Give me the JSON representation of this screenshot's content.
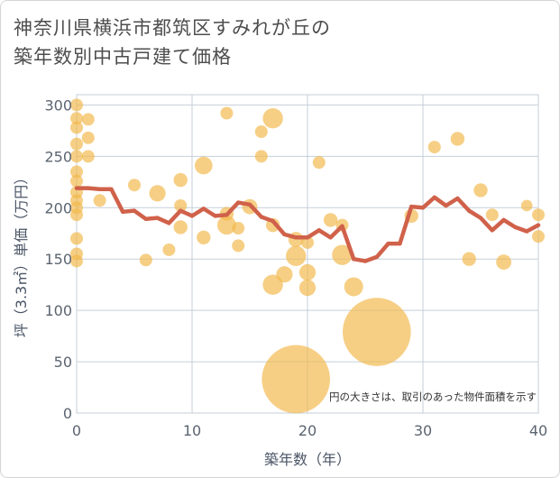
{
  "title_line1": "神奈川県横浜市都筑区すみれが丘の",
  "title_line2": "築年数別中古戸建て価格",
  "colors": {
    "bubble": "#f2b84b",
    "line": "#d0614a",
    "grid": "#c5cfd8"
  },
  "chart_data": {
    "type": "scatter",
    "xlabel": "築年数（年）",
    "ylabel": "坪（3.3㎡）単価（万円）",
    "xlim": [
      0,
      40
    ],
    "ylim": [
      0,
      310
    ],
    "x_ticks": [
      "0",
      "10",
      "20",
      "30",
      "40"
    ],
    "y_ticks": [
      "0",
      "50",
      "100",
      "150",
      "200",
      "250",
      "300"
    ],
    "annotation": "円の大きさは、取引のあった物件面積を示す",
    "bubbles": [
      {
        "x": 0,
        "y": 300,
        "s": 1
      },
      {
        "x": 0,
        "y": 287,
        "s": 1
      },
      {
        "x": 0,
        "y": 278,
        "s": 1
      },
      {
        "x": 0,
        "y": 262,
        "s": 1
      },
      {
        "x": 0,
        "y": 250,
        "s": 1
      },
      {
        "x": 0,
        "y": 235,
        "s": 1
      },
      {
        "x": 0,
        "y": 226,
        "s": 1
      },
      {
        "x": 0,
        "y": 215,
        "s": 1
      },
      {
        "x": 0,
        "y": 207,
        "s": 1
      },
      {
        "x": 0,
        "y": 200,
        "s": 1
      },
      {
        "x": 0,
        "y": 193,
        "s": 1
      },
      {
        "x": 0,
        "y": 170,
        "s": 1
      },
      {
        "x": 0,
        "y": 155,
        "s": 1
      },
      {
        "x": 0,
        "y": 148,
        "s": 1
      },
      {
        "x": 1,
        "y": 286,
        "s": 1
      },
      {
        "x": 1,
        "y": 268,
        "s": 1
      },
      {
        "x": 1,
        "y": 250,
        "s": 1
      },
      {
        "x": 2,
        "y": 207,
        "s": 1
      },
      {
        "x": 5,
        "y": 222,
        "s": 1
      },
      {
        "x": 6,
        "y": 149,
        "s": 1
      },
      {
        "x": 7,
        "y": 214,
        "s": 1.3
      },
      {
        "x": 8,
        "y": 159,
        "s": 1
      },
      {
        "x": 9,
        "y": 227,
        "s": 1.1
      },
      {
        "x": 9,
        "y": 202,
        "s": 1
      },
      {
        "x": 9,
        "y": 181,
        "s": 1.1
      },
      {
        "x": 11,
        "y": 241,
        "s": 1.4
      },
      {
        "x": 11,
        "y": 171,
        "s": 1.1
      },
      {
        "x": 13,
        "y": 292,
        "s": 1
      },
      {
        "x": 13,
        "y": 194,
        "s": 1.1
      },
      {
        "x": 13,
        "y": 183,
        "s": 1.5
      },
      {
        "x": 14,
        "y": 180,
        "s": 1
      },
      {
        "x": 14,
        "y": 163,
        "s": 1
      },
      {
        "x": 15,
        "y": 201,
        "s": 1.2
      },
      {
        "x": 16,
        "y": 274,
        "s": 1
      },
      {
        "x": 16,
        "y": 250,
        "s": 1
      },
      {
        "x": 17,
        "y": 287,
        "s": 1.6
      },
      {
        "x": 17,
        "y": 183,
        "s": 1.1
      },
      {
        "x": 17,
        "y": 125,
        "s": 1.6
      },
      {
        "x": 18,
        "y": 135,
        "s": 1.3
      },
      {
        "x": 19,
        "y": 169,
        "s": 1.2
      },
      {
        "x": 19,
        "y": 153,
        "s": 1.6
      },
      {
        "x": 19,
        "y": 33,
        "s": 5.4
      },
      {
        "x": 20,
        "y": 166,
        "s": 1
      },
      {
        "x": 20,
        "y": 137,
        "s": 1.3
      },
      {
        "x": 20,
        "y": 122,
        "s": 1.3
      },
      {
        "x": 21,
        "y": 244,
        "s": 1
      },
      {
        "x": 22,
        "y": 188,
        "s": 1.1
      },
      {
        "x": 23,
        "y": 183,
        "s": 1
      },
      {
        "x": 23,
        "y": 154,
        "s": 1.6
      },
      {
        "x": 24,
        "y": 123,
        "s": 1.5
      },
      {
        "x": 26,
        "y": 79,
        "s": 5.4
      },
      {
        "x": 29,
        "y": 192,
        "s": 1.1
      },
      {
        "x": 31,
        "y": 259,
        "s": 1
      },
      {
        "x": 33,
        "y": 267,
        "s": 1.1
      },
      {
        "x": 34,
        "y": 150,
        "s": 1.1
      },
      {
        "x": 35,
        "y": 217,
        "s": 1.1
      },
      {
        "x": 36,
        "y": 193,
        "s": 1
      },
      {
        "x": 37,
        "y": 147,
        "s": 1.2
      },
      {
        "x": 39,
        "y": 202,
        "s": 0.9
      },
      {
        "x": 40,
        "y": 193,
        "s": 1
      },
      {
        "x": 40,
        "y": 172,
        "s": 1
      }
    ],
    "line": [
      {
        "x": 0,
        "y": 219
      },
      {
        "x": 1,
        "y": 219
      },
      {
        "x": 2,
        "y": 218
      },
      {
        "x": 3,
        "y": 218
      },
      {
        "x": 4,
        "y": 196
      },
      {
        "x": 5,
        "y": 197
      },
      {
        "x": 6,
        "y": 189
      },
      {
        "x": 7,
        "y": 190
      },
      {
        "x": 8,
        "y": 185
      },
      {
        "x": 9,
        "y": 197
      },
      {
        "x": 10,
        "y": 192
      },
      {
        "x": 11,
        "y": 199
      },
      {
        "x": 12,
        "y": 192
      },
      {
        "x": 13,
        "y": 193
      },
      {
        "x": 14,
        "y": 205
      },
      {
        "x": 15,
        "y": 203
      },
      {
        "x": 16,
        "y": 191
      },
      {
        "x": 17,
        "y": 187
      },
      {
        "x": 18,
        "y": 174
      },
      {
        "x": 19,
        "y": 171
      },
      {
        "x": 20,
        "y": 171
      },
      {
        "x": 21,
        "y": 178
      },
      {
        "x": 22,
        "y": 171
      },
      {
        "x": 23,
        "y": 182
      },
      {
        "x": 24,
        "y": 150
      },
      {
        "x": 25,
        "y": 148
      },
      {
        "x": 26,
        "y": 152
      },
      {
        "x": 27,
        "y": 165
      },
      {
        "x": 28,
        "y": 165
      },
      {
        "x": 29,
        "y": 201
      },
      {
        "x": 30,
        "y": 200
      },
      {
        "x": 31,
        "y": 210
      },
      {
        "x": 32,
        "y": 202
      },
      {
        "x": 33,
        "y": 209
      },
      {
        "x": 34,
        "y": 197
      },
      {
        "x": 35,
        "y": 190
      },
      {
        "x": 36,
        "y": 178
      },
      {
        "x": 37,
        "y": 188
      },
      {
        "x": 38,
        "y": 181
      },
      {
        "x": 39,
        "y": 177
      },
      {
        "x": 40,
        "y": 183
      }
    ]
  }
}
